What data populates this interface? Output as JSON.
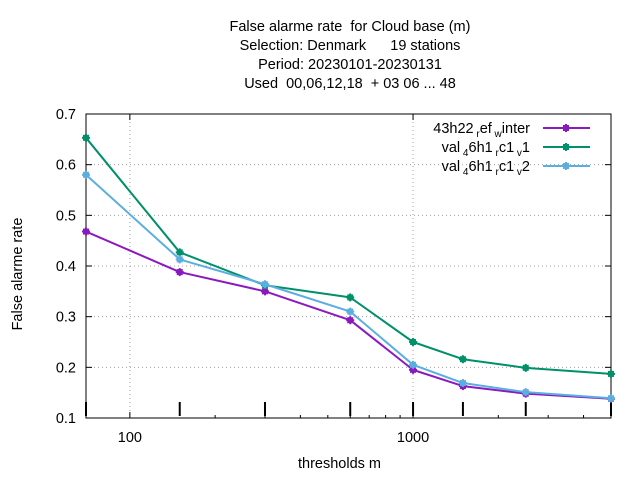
{
  "chart_data": {
    "type": "line",
    "title_lines": [
      "False alarme rate  for Cloud base (m)",
      "Selection: Denmark      19 stations",
      "Period: 20230101-20230131",
      "Used  00,06,12,18  + 03 06 ... 48"
    ],
    "xlabel": "thresholds m",
    "ylabel": "False alarme rate",
    "x_scale": "log",
    "xlim": [
      70,
      5000
    ],
    "ylim": [
      0.1,
      0.7
    ],
    "x_ticks": [
      100,
      1000
    ],
    "x_tick_labels": [
      "100",
      "1000"
    ],
    "y_ticks": [
      0.1,
      0.2,
      0.3,
      0.4,
      0.5,
      0.6,
      0.7
    ],
    "y_tick_labels": [
      "0.1",
      "0.2",
      "0.3",
      "0.4",
      "0.5",
      "0.6",
      "0.7"
    ],
    "x_data_ticks": [
      70,
      150,
      300,
      600,
      1000,
      1500,
      2500,
      5000
    ],
    "grid": true,
    "legend_position": "top-right",
    "x": [
      70,
      150,
      300,
      600,
      1000,
      1500,
      2500,
      5000
    ],
    "series": [
      {
        "name": "43h22_ref_winter",
        "color": "#8b19c0",
        "values": [
          0.468,
          0.388,
          0.35,
          0.293,
          0.195,
          0.163,
          0.148,
          0.138
        ]
      },
      {
        "name": "val_46h1_rc1_v1",
        "color": "#00906a",
        "values": [
          0.653,
          0.427,
          0.362,
          0.338,
          0.25,
          0.216,
          0.199,
          0.187
        ]
      },
      {
        "name": "val_46h1_rc1_v2",
        "color": "#5aaee0",
        "values": [
          0.58,
          0.413,
          0.364,
          0.31,
          0.205,
          0.169,
          0.151,
          0.139
        ]
      }
    ]
  }
}
